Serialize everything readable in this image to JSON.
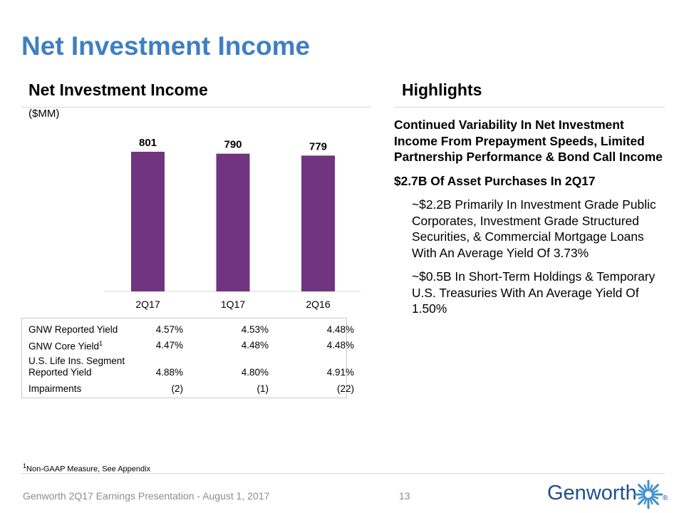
{
  "title": "Net Investment Income",
  "left_heading": "Net Investment Income",
  "right_heading": "Highlights",
  "unit_label": "($MM)",
  "chart_data": {
    "type": "bar",
    "categories": [
      "2Q17",
      "1Q17",
      "2Q16"
    ],
    "values": [
      801,
      790,
      779
    ],
    "title": "Net Investment Income",
    "ylabel": "($MM)",
    "ylim": [
      0,
      801
    ],
    "color": "#70357e"
  },
  "metrics": [
    {
      "label": "GNW Reported Yield",
      "sup": "",
      "values": [
        "4.57%",
        "4.53%",
        "4.48%"
      ]
    },
    {
      "label": "GNW Core Yield",
      "sup": "1",
      "values": [
        "4.47%",
        "4.48%",
        "4.48%"
      ]
    },
    {
      "label_line1": "U.S. Life Ins. Segment",
      "label": "Reported Yield",
      "sup": "",
      "values": [
        "4.88%",
        "4.80%",
        "4.91%"
      ]
    },
    {
      "label": "Impairments",
      "sup": "",
      "values": [
        "(2)",
        "(1)",
        "(22)"
      ]
    }
  ],
  "highlights": {
    "point1": "Continued Variability In Net Investment Income From Prepayment Speeds, Limited Partnership Performance & Bond Call Income",
    "point2": "$2.7B Of Asset Purchases In 2Q17",
    "sub1": "~$2.2B Primarily In Investment Grade Public Corporates, Investment Grade Structured Securities, & Commercial Mortgage Loans With An Average Yield Of 3.73%",
    "sub2": "~$0.5B In Short-Term Holdings & Temporary U.S. Treasuries With An Average Yield Of 1.50%"
  },
  "footnote_sup": "1",
  "footnote": "Non-GAAP Measure, See Appendix",
  "footer": "Genworth 2Q17 Earnings Presentation - August 1, 2017",
  "page_number": "13",
  "brand": "Genworth",
  "reg_mark": "®",
  "colors": {
    "title": "#3f7fc2",
    "bar": "#70357e",
    "brand": "#1f4e8c",
    "footer_text": "#8c8c8c"
  }
}
